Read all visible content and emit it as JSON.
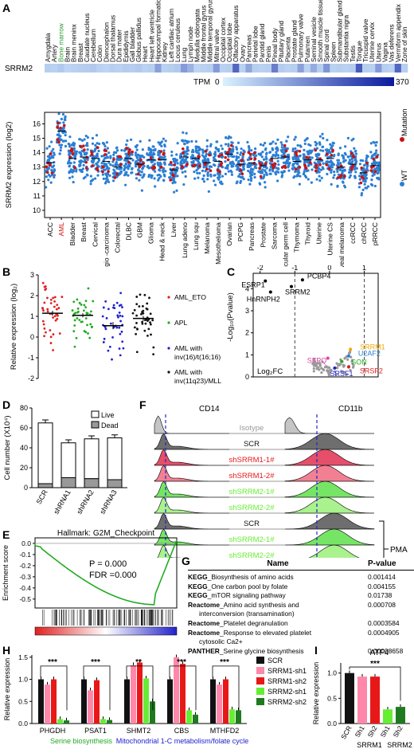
{
  "panels": {
    "A": "A",
    "B": "B",
    "C": "C",
    "D": "D",
    "E": "E",
    "F": "F",
    "G": "G",
    "H": "H",
    "I": "I"
  },
  "colors": {
    "mutation": "#cc1111",
    "wt": "#2a7fd4",
    "heat_low": "#d9f2ff",
    "heat_high": "#0a1a9e",
    "aml_eto": "#e02020",
    "apl": "#22aa22",
    "aml_inv16": "#2222cc",
    "aml_mll": "#111111",
    "scr": "#111111",
    "srrm1_sh1": "#ff88aa",
    "srrm1_sh2": "#e81818",
    "srrm2_sh1": "#66ee33",
    "srrm2_sh2": "#1f7a1f",
    "isotype": "#999999",
    "live": "#ffffff",
    "dead": "#999999"
  },
  "panel_a": {
    "gene": "SRRM2",
    "tissues": [
      "Amygdala",
      "Artery",
      "Bone marrow",
      "Brain",
      "Brain meninx",
      "Breast",
      "Caudate nucleus",
      "Cerebellum",
      "Colon",
      "Diencephalon",
      "Dorsal thalamus",
      "Dura mater",
      "Epididymis",
      "Gall bladder",
      "Globus pallidus",
      "Heart",
      "Heart left ventricle",
      "Hippocampal formation",
      "Kidney",
      "Left cardiac atrium",
      "Locus ceruleus",
      "Lung",
      "Lymph node",
      "Medulla oblongata",
      "Middle frontal gyrus",
      "Middle temporal gyrus",
      "Mitral valve",
      "Occipital cortex",
      "Occipital lobe",
      "Olfactory apparatus",
      "Ovary",
      "Pancreas",
      "Parietal lobe",
      "Parotid gland",
      "Penis",
      "Pineal body",
      "Pituitary gland",
      "Placenta",
      "Prostate gland",
      "Pulmonary valve",
      "Putamen",
      "Seminal vesicle",
      "Smooth muscle tissue",
      "Spinal cord",
      "Spleen",
      "Submandibular gland",
      "Substantia nigra",
      "Testis",
      "Tongue",
      "Tricuspid valve",
      "Uterine cervix",
      "Uterus",
      "Vagina",
      "Vas deferens",
      "Vermiform appendix",
      "Zone of skin"
    ],
    "highlight_tissue": "Bone marrow",
    "tpm": [
      60,
      55,
      70,
      50,
      55,
      60,
      65,
      70,
      55,
      50,
      60,
      55,
      65,
      60,
      70,
      55,
      60,
      140,
      55,
      60,
      70,
      150,
      110,
      50,
      55,
      60,
      150,
      55,
      60,
      240,
      55,
      130,
      60,
      55,
      60,
      200,
      65,
      55,
      60,
      140,
      55,
      120,
      60,
      160,
      55,
      60,
      55,
      65,
      260,
      60,
      55,
      150,
      60,
      55,
      240,
      60
    ],
    "tpm_label": "TPM",
    "tpm_min": "0",
    "tpm_max": "370"
  },
  "chart_data": [
    {
      "type": "scatter",
      "ylabel": "SRRM2 expression (log2)",
      "yticks": [
        "10",
        "11",
        "12",
        "13",
        "14",
        "15",
        "16"
      ],
      "ylim": [
        9.5,
        16.8
      ],
      "categories": [
        "ACC",
        "AML",
        "Bladder",
        "Breast",
        "Cervical",
        "Cholangio -carcinoma",
        "Colorectal",
        "DLBC",
        "GBM",
        "Glioma",
        "Head & neck",
        "Liver",
        "Lung adeno",
        "Lung squ",
        "Melanoma",
        "Mesothelioma",
        "Ovarian",
        "PCPG",
        "Pancreas",
        "Prostate",
        "Sarcoma",
        "Testicular germ cell",
        "Thymoma",
        "Thyroid",
        "Uterine",
        "Uterine CS",
        "Uveal melanoma",
        "ccRCC",
        "chRCC",
        "pRRCC"
      ],
      "highlight_category": "AML",
      "medians": [
        13.3,
        15.5,
        13.6,
        13.7,
        13.6,
        13.4,
        13.0,
        13.6,
        13.2,
        13.5,
        13.5,
        12.8,
        13.7,
        13.6,
        13.3,
        13.4,
        13.9,
        13.2,
        13.3,
        13.1,
        13.6,
        13.7,
        13.4,
        13.5,
        13.5,
        13.6,
        13.0,
        13.2,
        12.6,
        13.1
      ],
      "legend": [
        "Mutation",
        "WT"
      ]
    },
    {
      "type": "scatter",
      "ylabel": "Relative expression (log₂)",
      "yticks": [
        "-2",
        "-1",
        "0",
        "1",
        "2",
        "3"
      ],
      "ylim": [
        -2,
        3
      ],
      "series": [
        {
          "name": "AML_ETO",
          "mean": 1.15,
          "sem": 0.12
        },
        {
          "name": "APL",
          "mean": 1.05,
          "sem": 0.1
        },
        {
          "name": "AML with inv(16)/t(16;16)",
          "mean": 0.55,
          "sem": 0.17
        },
        {
          "name": "AML with inv(11q23)/MLL",
          "mean": 0.9,
          "sem": 0.12
        }
      ]
    },
    {
      "type": "scatter",
      "xlabel": "Log₂FC",
      "ylabel": "-Log₁₀(Pvalue)",
      "xticks": [
        "-2",
        "-1",
        "0",
        "1"
      ],
      "yticks": [
        "0",
        "1",
        "2",
        "3",
        "4"
      ],
      "xlim": [
        -2.2,
        1.4
      ],
      "ylim": [
        0,
        4.7
      ],
      "points": [
        {
          "name": "ESRP1",
          "x": -1.85,
          "y": 4.35
        },
        {
          "name": "PCBP4",
          "x": -0.78,
          "y": 4.4
        },
        {
          "name": "SRRM2",
          "x": -1.1,
          "y": 4.1
        },
        {
          "name": "HnRNPH2",
          "x": -1.7,
          "y": 3.85
        },
        {
          "name": "SRRM1",
          "x": 0.6,
          "y": 1.25
        },
        {
          "name": "U2AF2",
          "x": 0.55,
          "y": 0.95
        },
        {
          "name": "SON",
          "x": 0.35,
          "y": 0.7
        },
        {
          "name": "SFPQ",
          "x": -0.05,
          "y": 0.85
        },
        {
          "name": "SRSF1",
          "x": 0.15,
          "y": 0.4
        },
        {
          "name": "SRSF2",
          "x": 0.55,
          "y": 0.45
        }
      ]
    },
    {
      "type": "bar",
      "ylabel": "Cell number (X10⁴)",
      "yticks": [
        "0",
        "20",
        "40",
        "60",
        "80"
      ],
      "ylim": [
        0,
        80
      ],
      "categories": [
        "SCR",
        "shRNA1",
        "shRNA2",
        "shRNA3"
      ],
      "series": [
        {
          "name": "Live",
          "values": [
            61,
            35,
            40,
            42
          ],
          "err": [
            3,
            3,
            3,
            3
          ]
        },
        {
          "name": "Dead",
          "values": [
            4,
            10,
            9,
            8
          ],
          "err": [
            1,
            1,
            1,
            1
          ]
        }
      ]
    },
    {
      "type": "line",
      "title": "Hallmark: G2M_Checkpoint",
      "ylabel": "Enrichment score",
      "yticks": [
        "0.0",
        "-0.1",
        "-0.2",
        "-0.3",
        "-0.4",
        "-0.5"
      ],
      "ylim": [
        -0.58,
        0.05
      ],
      "annotation": [
        "P = 0.000",
        "FDR =0.000"
      ]
    },
    {
      "type": "area",
      "markers": [
        "CD14",
        "CD11b"
      ],
      "rows": [
        "Isotype",
        "SCR",
        "shSRRM1-1#",
        "shSRRM1-2#",
        "shSRRM2-1#",
        "shSRRM2-2#",
        "SCR",
        "shSRRM2-1#",
        "shSRRM2-2#"
      ],
      "bracket": "PMA"
    },
    {
      "type": "table",
      "columns": [
        "Name",
        "P-value"
      ],
      "rows": [
        {
          "db": "KEGG",
          "name": "_Biosynthesis of amino acids",
          "p": "0.001414"
        },
        {
          "db": "KEGG",
          "name": "_One carbon pool by folate",
          "p": "0.004155"
        },
        {
          "db": "KEGG",
          "name": "_mTOR signaling pathway",
          "p": "0.01738"
        },
        {
          "db": "Reactome",
          "name": "_Amino acid synthesis and",
          "p": "0.000708"
        },
        {
          "db": "",
          "name": "interconversion (transamination)",
          "p": ""
        },
        {
          "db": "Reactome",
          "name": "_Platelet degranulation",
          "p": "0.0003584"
        },
        {
          "db": "Reactome",
          "name": "_Response to elevated platelet",
          "p": "0.0004905"
        },
        {
          "db": "",
          "name": "cytosolic Ca2+",
          "p": ""
        },
        {
          "db": "PANTHER",
          "name": "_Serine glycine biosynthesis",
          "p": "0.00008658"
        }
      ]
    },
    {
      "type": "bar",
      "ylabel": "Relative expression",
      "yticks": [
        "0.0",
        "0.5",
        "1.0",
        "1.5"
      ],
      "ylim": [
        0,
        1.55
      ],
      "categories": [
        "PHGDH",
        "PSAT1",
        "SHMT2",
        "CBS",
        "MTHFD2"
      ],
      "series": [
        {
          "name": "SCR",
          "values": [
            1.0,
            1.0,
            1.0,
            1.0,
            1.0
          ]
        },
        {
          "name": "SRRM1-sh1",
          "values": [
            0.88,
            0.75,
            1.32,
            1.5,
            0.88
          ]
        },
        {
          "name": "SRRM1-sh2",
          "values": [
            1.0,
            0.98,
            1.38,
            1.35,
            1.0
          ]
        },
        {
          "name": "SRRM2-sh1",
          "values": [
            0.1,
            0.1,
            1.02,
            0.3,
            0.32
          ]
        },
        {
          "name": "SRRM2-sh2",
          "values": [
            0.07,
            0.08,
            0.5,
            0.2,
            0.3
          ]
        }
      ],
      "significance": [
        "***",
        "***",
        "**",
        "***",
        "***"
      ],
      "groups": [
        {
          "label": "Serine biosynthesis",
          "color": "#22aa22"
        },
        {
          "label": "Mitochondrial 1-C metabolism/folate cycle",
          "color": "#2222cc"
        }
      ]
    },
    {
      "type": "bar",
      "title": "ATF4",
      "ylabel": "Relative expression",
      "yticks": [
        "0.0",
        "0.5",
        "1.0"
      ],
      "ylim": [
        0,
        1.2
      ],
      "categories": [
        "SCR",
        "Sh1",
        "Sh2",
        "Sh1",
        "Sh2"
      ],
      "values": [
        1.0,
        0.93,
        0.93,
        0.28,
        0.33
      ],
      "groups": [
        "SRRM1",
        "SRRM2"
      ],
      "significance": "***"
    }
  ]
}
